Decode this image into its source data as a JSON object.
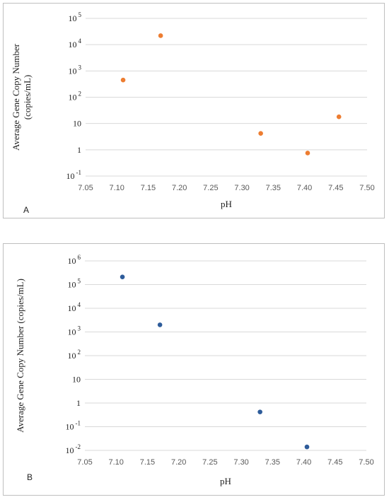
{
  "chart_data": [
    {
      "panel_label": "A",
      "type": "scatter",
      "xlabel": "pH",
      "ylabel_lines": [
        "Average Gene Copy Number",
        "(copies/mL)"
      ],
      "xlim": [
        7.05,
        7.5
      ],
      "x_ticks": [
        "7.05",
        "7.10",
        "7.15",
        "7.20",
        "7.25",
        "7.30",
        "7.35",
        "7.40",
        "7.45",
        "7.50"
      ],
      "y_scale": "log",
      "ylim": [
        0.1,
        100000
      ],
      "y_ticks": [
        {
          "base": "10",
          "exp": "5"
        },
        {
          "base": "10",
          "exp": "4"
        },
        {
          "base": "10",
          "exp": "3"
        },
        {
          "base": "10",
          "exp": "2"
        },
        {
          "base": "10",
          "exp": ""
        },
        {
          "base": "1",
          "exp": ""
        },
        {
          "base": "10",
          "exp": "-1"
        }
      ],
      "grid": true,
      "series": [
        {
          "color": "#ed7d31",
          "points": [
            {
              "x": 7.11,
              "y": 450
            },
            {
              "x": 7.17,
              "y": 22000
            },
            {
              "x": 7.33,
              "y": 4.2
            },
            {
              "x": 7.405,
              "y": 0.75
            },
            {
              "x": 7.455,
              "y": 18
            }
          ]
        }
      ]
    },
    {
      "panel_label": "B",
      "type": "scatter",
      "xlabel": "pH",
      "ylabel_lines": [
        "Average Gene Copy Number (copies/mL)"
      ],
      "xlim": [
        7.05,
        7.5
      ],
      "x_ticks": [
        "7.05",
        "7.10",
        "7.15",
        "7.20",
        "7.25",
        "7.30",
        "7.35",
        "7.40",
        "7.45",
        "7.50"
      ],
      "y_scale": "log",
      "ylim": [
        0.01,
        1000000
      ],
      "y_ticks": [
        {
          "base": "10",
          "exp": "6"
        },
        {
          "base": "10",
          "exp": "5"
        },
        {
          "base": "10",
          "exp": "4"
        },
        {
          "base": "10",
          "exp": "3"
        },
        {
          "base": "10",
          "exp": "2"
        },
        {
          "base": "10",
          "exp": ""
        },
        {
          "base": "1",
          "exp": ""
        },
        {
          "base": "10",
          "exp": "-1"
        },
        {
          "base": "10",
          "exp": "-2"
        }
      ],
      "grid": true,
      "series": [
        {
          "color": "#2e5c9a",
          "points": [
            {
              "x": 7.11,
              "y": 210000
            },
            {
              "x": 7.17,
              "y": 2000
            },
            {
              "x": 7.33,
              "y": 0.42
            },
            {
              "x": 7.405,
              "y": 0.014
            }
          ]
        }
      ]
    }
  ]
}
